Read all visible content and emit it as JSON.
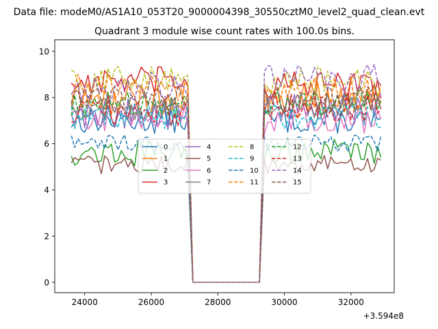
{
  "chart_data": {
    "type": "line",
    "suptitle": "Data file: modeM0/AS1A10_053T20_9000004398_30550cztM0_level2_quad_clean.evt",
    "title": "Quadrant 3 module wise count rates with 100.0s bins.",
    "xlabel": "",
    "ylabel": "",
    "x_offset_label": "+3.594e8",
    "xlim": [
      23100,
      33300
    ],
    "ylim": [
      -0.45,
      10.5
    ],
    "x_ticks": [
      24000,
      26000,
      28000,
      30000,
      32000
    ],
    "x_tick_labels": [
      "24000",
      "26000",
      "28000",
      "30000",
      "32000"
    ],
    "y_ticks": [
      0,
      2,
      4,
      6,
      8,
      10
    ],
    "y_tick_labels": [
      "0",
      "2",
      "4",
      "6",
      "8",
      "10"
    ],
    "grid": false,
    "legend_position": "center",
    "gap": {
      "start": 27100,
      "end": 29400,
      "drop_end": 27250,
      "rise_start": 29250,
      "value": 0
    },
    "segments": [
      {
        "x_start": 23600,
        "x_end": 27100
      },
      {
        "x_start": 29400,
        "x_end": 32900
      }
    ],
    "bin_width": 100,
    "series": [
      {
        "name": "0",
        "color": "#1f77b4",
        "dash": "solid",
        "level": [
          7.0,
          7.0
        ],
        "noise": 0.35
      },
      {
        "name": "1",
        "color": "#ff7f0e",
        "dash": "solid",
        "level": [
          7.9,
          7.9
        ],
        "noise": 0.5
      },
      {
        "name": "2",
        "color": "#2ca02c",
        "dash": "solid",
        "level": [
          5.6,
          5.7
        ],
        "noise": 0.35
      },
      {
        "name": "3",
        "color": "#d62728",
        "dash": "solid",
        "level": [
          8.7,
          8.5
        ],
        "noise": 0.4
      },
      {
        "name": "4",
        "color": "#9467bd",
        "dash": "solid",
        "level": [
          7.3,
          7.6
        ],
        "noise": 0.4
      },
      {
        "name": "5",
        "color": "#8c564b",
        "dash": "solid",
        "level": [
          5.1,
          5.1
        ],
        "noise": 0.25
      },
      {
        "name": "6",
        "color": "#e377c2",
        "dash": "solid",
        "level": [
          7.1,
          7.0
        ],
        "noise": 0.35
      },
      {
        "name": "7",
        "color": "#7f7f7f",
        "dash": "solid",
        "level": [
          7.5,
          7.6
        ],
        "noise": 0.35
      },
      {
        "name": "8",
        "color": "#bcbd22",
        "dash": "dashed",
        "level": [
          8.8,
          8.7
        ],
        "noise": 0.4
      },
      {
        "name": "9",
        "color": "#17becf",
        "dash": "dashed",
        "level": [
          7.2,
          7.2
        ],
        "noise": 0.35
      },
      {
        "name": "10",
        "color": "#1f77b4",
        "dash": "dashed",
        "level": [
          6.0,
          6.0
        ],
        "noise": 0.25
      },
      {
        "name": "11",
        "color": "#ff7f0e",
        "dash": "dashed",
        "level": [
          8.4,
          8.3
        ],
        "noise": 0.4
      },
      {
        "name": "12",
        "color": "#2ca02c",
        "dash": "dashed",
        "level": [
          7.7,
          7.8
        ],
        "noise": 0.35
      },
      {
        "name": "13",
        "color": "#d62728",
        "dash": "dashed",
        "level": [
          7.4,
          7.6
        ],
        "noise": 0.4
      },
      {
        "name": "14",
        "color": "#9467bd",
        "dash": "dashed",
        "level": [
          8.5,
          8.9
        ],
        "noise": 0.4
      },
      {
        "name": "15",
        "color": "#8c564b",
        "dash": "dashed",
        "level": [
          8.0,
          8.0
        ],
        "noise": 0.35
      }
    ]
  }
}
